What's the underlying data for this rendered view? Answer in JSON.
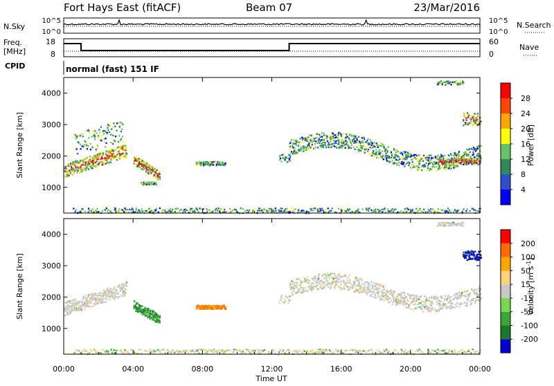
{
  "header": {
    "station": "Fort Hays East (fitACF)",
    "beam": "Beam 07",
    "date": "23/Mar/2016"
  },
  "noise_panel": {
    "left_label": "N.Sky",
    "right_label": "N.Search",
    "left_ticks": [
      "10^5",
      "10^0"
    ],
    "right_ticks": [
      "10^5",
      "10^0"
    ]
  },
  "freq_panel": {
    "left_label_1": "Freq.",
    "left_label_2": "[MHz]",
    "right_label": "Nave",
    "left_ticks": [
      "18",
      "8"
    ],
    "right_ticks": [
      "60",
      "0"
    ],
    "cpid_label": "CPID",
    "cpid_text": "normal (fast) 151 IF"
  },
  "colors": {
    "power": [
      "#0000ff",
      "#2f4fc8",
      "#2e8b57",
      "#66c266",
      "#ffff00",
      "#ffa500",
      "#ff4500",
      "#ff0000"
    ],
    "velocity": [
      "#0000d0",
      "#1a7a2a",
      "#3aa63a",
      "#7ad64a",
      "#c8c8c8",
      "#ffd27a",
      "#ffa500",
      "#ff6a00",
      "#ff0000"
    ]
  },
  "chart_data": [
    {
      "type": "heatmap",
      "title": "",
      "ylabel": "Slant Range [km]",
      "xlabel": "",
      "x_range_hours": [
        0,
        24
      ],
      "ylim": [
        180,
        4500
      ],
      "yticks": [
        "1000",
        "2000",
        "3000",
        "4000"
      ],
      "colorbar_label": "Power [dB]",
      "colorbar_ticks": [
        "28",
        "24",
        "20",
        "16",
        "12",
        "8",
        "4"
      ]
    },
    {
      "type": "heatmap",
      "title": "",
      "ylabel": "Slant Range [km]",
      "xlabel": "Time UT",
      "x_range_hours": [
        0,
        24
      ],
      "ylim": [
        180,
        4500
      ],
      "yticks": [
        "1000",
        "2000",
        "3000",
        "4000"
      ],
      "xticks": [
        "00:00",
        "04:00",
        "08:00",
        "12:00",
        "16:00",
        "20:00",
        "00:00"
      ],
      "colorbar_label": "Velocity [m s^-1]",
      "colorbar_ticks": [
        "200",
        "100",
        "50",
        "15",
        "-15",
        "-50",
        "-100",
        "-200"
      ]
    }
  ]
}
